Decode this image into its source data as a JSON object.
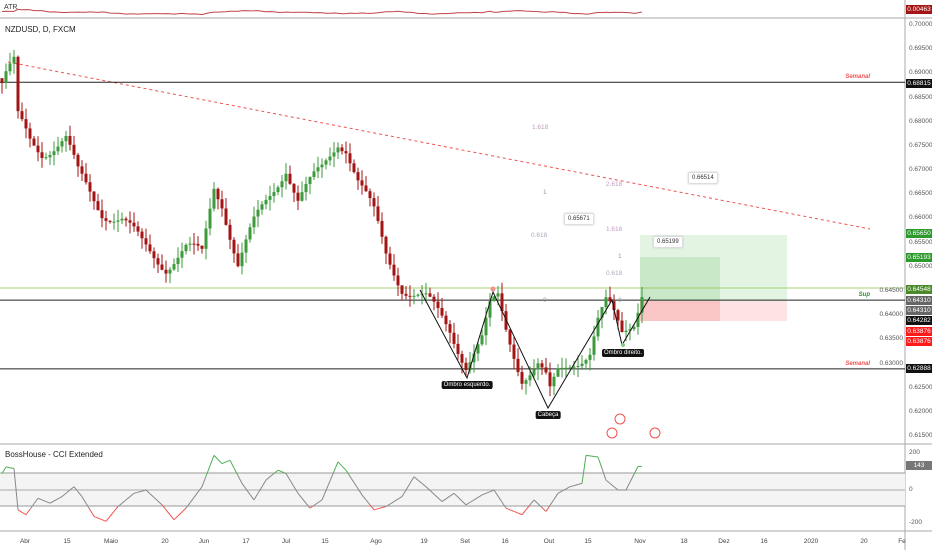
{
  "header": {
    "symbol_title": "NZDUSD, D, FXCM",
    "atr_label": "ATR"
  },
  "cci": {
    "title": "BossHouse - CCI Extended",
    "ticks": [
      "200",
      "0",
      "-200"
    ],
    "value_badge": "143"
  },
  "price_axis": {
    "ticks": [
      "0.70000",
      "0.69500",
      "0.69000",
      "0.68500",
      "0.68000",
      "0.67500",
      "0.67000",
      "0.66500",
      "0.66000",
      "0.65500",
      "0.65000",
      "0.64500",
      "0.64000",
      "0.63500",
      "0.63000",
      "0.62500",
      "0.62000",
      "0.61500"
    ],
    "badges": [
      {
        "value": "0.00463",
        "color": "#a31515"
      },
      {
        "value": "0.68815",
        "color": "#111111"
      },
      {
        "value": "0.65650",
        "color": "#2e9a2e"
      },
      {
        "value": "0.65193",
        "color": "#2e9a2e"
      },
      {
        "value": "0.64548",
        "color": "#4a8a2a"
      },
      {
        "value": "0.64310",
        "color": "#666666"
      },
      {
        "value": "0.64310",
        "color": "#666666"
      },
      {
        "value": "0.64282",
        "color": "#111111"
      },
      {
        "value": "0.63876",
        "color": "#ff1a1a"
      },
      {
        "value": "0.63876",
        "color": "#ff1a1a"
      },
      {
        "value": "0.62888",
        "color": "#111111"
      }
    ]
  },
  "time_axis": [
    "Abr",
    "15",
    "Maio",
    "20",
    "Jun",
    "17",
    "Jul",
    "15",
    "Ago",
    "19",
    "Set",
    "16",
    "Out",
    "15",
    "Nov",
    "18",
    "Dez",
    "16",
    "2020",
    "20",
    "Fe"
  ],
  "levels": [
    {
      "price": 0.68815,
      "tag": "Semanal",
      "tag_color": "#ef5350"
    },
    {
      "price": 0.6431,
      "tag": "Sup",
      "tag_color": "#2e8b2e"
    },
    {
      "price": 0.62888,
      "tag": "Semanal",
      "tag_color": "#ef5350"
    }
  ],
  "pattern_labels": {
    "left_shoulder": "Ombro esquerdo.",
    "head": "Cabeça",
    "right_shoulder": "Ombro direito."
  },
  "fib_left": [
    "1.618",
    "1",
    "0.618",
    "0"
  ],
  "fib_right": [
    "2.618",
    "1.618",
    "1",
    "0.618",
    "0"
  ],
  "tooltips": [
    "0.65671",
    "0.66514",
    "0.65199"
  ],
  "colors": {
    "up": "#3d9a3d",
    "down": "#a31515",
    "trendline": "#ef5350",
    "atr": "#c2434a"
  },
  "chart_data": {
    "type": "candlestick",
    "interval": "D",
    "close_path": [
      [
        "2019-03-22",
        0.688
      ],
      [
        "2019-03-25",
        0.6897
      ],
      [
        "2019-03-27",
        0.6917
      ],
      [
        "2019-03-28",
        0.6804
      ],
      [
        "2019-04-02",
        0.6762
      ],
      [
        "2019-04-05",
        0.6741
      ],
      [
        "2019-04-15",
        0.6762
      ],
      [
        "2019-04-18",
        0.669
      ],
      [
        "2019-04-26",
        0.6617
      ],
      [
        "2019-05-03",
        0.6597
      ],
      [
        "2019-05-10",
        0.6545
      ],
      [
        "2019-05-20",
        0.6504
      ],
      [
        "2019-05-27",
        0.6535
      ],
      [
        "2019-05-31",
        0.6524
      ],
      [
        "2019-06-05",
        0.6669
      ],
      [
        "2019-06-07",
        0.6638
      ],
      [
        "2019-06-13",
        0.6504
      ],
      [
        "2019-06-19",
        0.6586
      ],
      [
        "2019-06-25",
        0.6648
      ],
      [
        "2019-07-01",
        0.671
      ],
      [
        "2019-07-04",
        0.6638
      ],
      [
        "2019-07-12",
        0.67
      ],
      [
        "2019-07-18",
        0.6762
      ],
      [
        "2019-07-22",
        0.6752
      ],
      [
        "2019-07-25",
        0.6679
      ],
      [
        "2019-07-31",
        0.6607
      ],
      [
        "2019-08-05",
        0.6524
      ],
      [
        "2019-08-09",
        0.6462
      ],
      [
        "2019-08-19",
        0.6431
      ],
      [
        "2019-08-27",
        0.6369
      ],
      [
        "2019-09-02",
        0.6303
      ],
      [
        "2019-09-06",
        0.6349
      ],
      [
        "2019-09-10",
        0.6411
      ],
      [
        "2019-09-12",
        0.6431
      ],
      [
        "2019-09-16",
        0.6369
      ],
      [
        "2019-09-20",
        0.6276
      ],
      [
        "2019-09-26",
        0.6297
      ],
      [
        "2019-09-30",
        0.6266
      ],
      [
        "2019-10-01",
        0.6235
      ],
      [
        "2019-10-03",
        0.6276
      ],
      [
        "2019-10-09",
        0.6307
      ],
      [
        "2019-10-15",
        0.6328
      ],
      [
        "2019-10-17",
        0.639
      ],
      [
        "2019-10-21",
        0.6421
      ],
      [
        "2019-10-22",
        0.6411
      ],
      [
        "2019-10-25",
        0.6359
      ],
      [
        "2019-10-30",
        0.639
      ],
      [
        "2019-11-01",
        0.6455
      ]
    ],
    "cci_path": [
      [
        "2019-03-22",
        100
      ],
      [
        "2019-03-25",
        140
      ],
      [
        "2019-03-27",
        130
      ],
      [
        "2019-03-28",
        -120
      ],
      [
        "2019-04-01",
        -150
      ],
      [
        "2019-04-04",
        -50
      ],
      [
        "2019-04-09",
        -80
      ],
      [
        "2019-04-12",
        -40
      ],
      [
        "2019-04-17",
        20
      ],
      [
        "2019-04-19",
        -40
      ],
      [
        "2019-04-24",
        -160
      ],
      [
        "2019-04-29",
        -190
      ],
      [
        "2019-05-02",
        -100
      ],
      [
        "2019-05-08",
        -20
      ],
      [
        "2019-05-13",
        0
      ],
      [
        "2019-05-17",
        -90
      ],
      [
        "2019-05-22",
        -180
      ],
      [
        "2019-05-27",
        -110
      ],
      [
        "2019-05-31",
        20
      ],
      [
        "2019-06-05",
        210
      ],
      [
        "2019-06-07",
        160
      ],
      [
        "2019-06-11",
        180
      ],
      [
        "2019-06-14",
        40
      ],
      [
        "2019-06-19",
        -60
      ],
      [
        "2019-06-24",
        60
      ],
      [
        "2019-06-27",
        120
      ],
      [
        "2019-07-01",
        100
      ],
      [
        "2019-07-04",
        -20
      ],
      [
        "2019-07-09",
        -110
      ],
      [
        "2019-07-12",
        -60
      ],
      [
        "2019-07-18",
        170
      ],
      [
        "2019-07-22",
        120
      ],
      [
        "2019-07-26",
        -30
      ],
      [
        "2019-07-31",
        -120
      ],
      [
        "2019-08-05",
        -100
      ],
      [
        "2019-08-09",
        -40
      ],
      [
        "2019-08-14",
        80
      ],
      [
        "2019-08-19",
        20
      ],
      [
        "2019-08-23",
        -70
      ],
      [
        "2019-08-28",
        -20
      ],
      [
        "2019-09-02",
        -90
      ],
      [
        "2019-09-06",
        -30
      ],
      [
        "2019-09-11",
        0
      ],
      [
        "2019-09-16",
        -110
      ],
      [
        "2019-09-20",
        -150
      ],
      [
        "2019-09-25",
        -60
      ],
      [
        "2019-09-30",
        -130
      ],
      [
        "2019-10-03",
        -20
      ],
      [
        "2019-10-08",
        20
      ],
      [
        "2019-10-11",
        40
      ],
      [
        "2019-10-14",
        210
      ],
      [
        "2019-10-17",
        200
      ],
      [
        "2019-10-21",
        60
      ],
      [
        "2019-10-24",
        0
      ],
      [
        "2019-10-28",
        0
      ],
      [
        "2019-10-31",
        143
      ],
      [
        "2019-11-01",
        143
      ]
    ],
    "price_range": [
      0.615,
      0.7
    ],
    "cci_bands": [
      -100,
      100
    ]
  }
}
